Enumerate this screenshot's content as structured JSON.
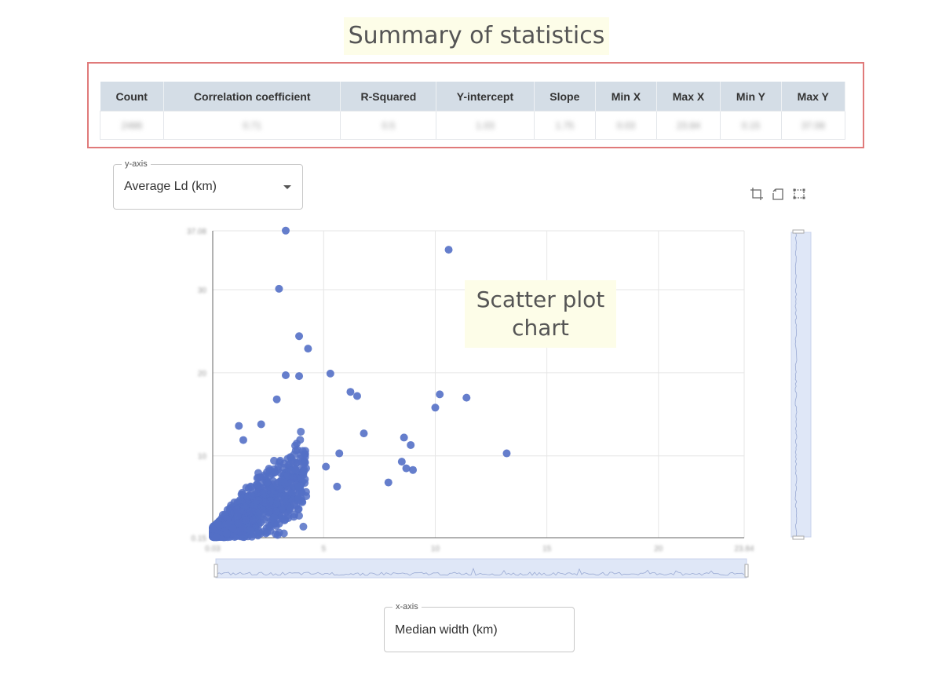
{
  "annotations": {
    "summary_title": "Summary of statistics",
    "scatter_line1": "Scatter plot",
    "scatter_line2": "chart"
  },
  "stats": {
    "headers": [
      "Count",
      "Correlation coefficient",
      "R-Squared",
      "Y-intercept",
      "Slope",
      "Min X",
      "Max X",
      "Min Y",
      "Max Y"
    ],
    "values": [
      "2486",
      "0.71",
      "0.5",
      "1.03",
      "1.75",
      "0.03",
      "23.84",
      "0.15",
      "37.08"
    ]
  },
  "y_axis_select": {
    "legend": "y-axis",
    "value": "Average Ld (km)"
  },
  "x_axis_select": {
    "legend": "x-axis",
    "value": "Median width (km)"
  },
  "toolbox": {
    "icons": [
      "zoom-icon",
      "zoom-reset-icon",
      "area-select-icon"
    ]
  },
  "colors": {
    "point": "#5470c6",
    "frame": "#e07a7a",
    "header_bg": "#d4dde6"
  },
  "chart_data": {
    "type": "scatter",
    "title": "",
    "xlabel": "",
    "ylabel": "",
    "xlim": [
      0.03,
      23.84
    ],
    "ylim": [
      0.15,
      37.08
    ],
    "x_ticks": [
      "0.03",
      "5",
      "10",
      "15",
      "20",
      "23.84"
    ],
    "y_ticks": [
      "0.15",
      "10",
      "20",
      "30",
      "37.08"
    ],
    "point_color": "#5470c6",
    "cluster_description_points_count": 2486,
    "outliers": [
      [
        3.3,
        37.1
      ],
      [
        10.6,
        34.8
      ],
      [
        3.0,
        30.1
      ],
      [
        3.9,
        24.4
      ],
      [
        4.3,
        22.9
      ],
      [
        3.3,
        19.7
      ],
      [
        3.9,
        19.6
      ],
      [
        5.3,
        19.9
      ],
      [
        6.2,
        17.7
      ],
      [
        6.5,
        17.2
      ],
      [
        10.2,
        17.4
      ],
      [
        11.4,
        17.0
      ],
      [
        10.0,
        15.8
      ],
      [
        2.9,
        16.8
      ],
      [
        6.8,
        12.7
      ],
      [
        8.6,
        12.2
      ],
      [
        8.9,
        11.3
      ],
      [
        13.2,
        10.3
      ],
      [
        8.5,
        9.3
      ],
      [
        8.7,
        8.5
      ],
      [
        9.0,
        8.3
      ],
      [
        7.9,
        6.8
      ],
      [
        5.6,
        6.3
      ],
      [
        5.1,
        8.7
      ],
      [
        5.7,
        10.3
      ],
      [
        2.2,
        13.8
      ],
      [
        1.2,
        13.6
      ],
      [
        1.4,
        11.9
      ]
    ]
  }
}
